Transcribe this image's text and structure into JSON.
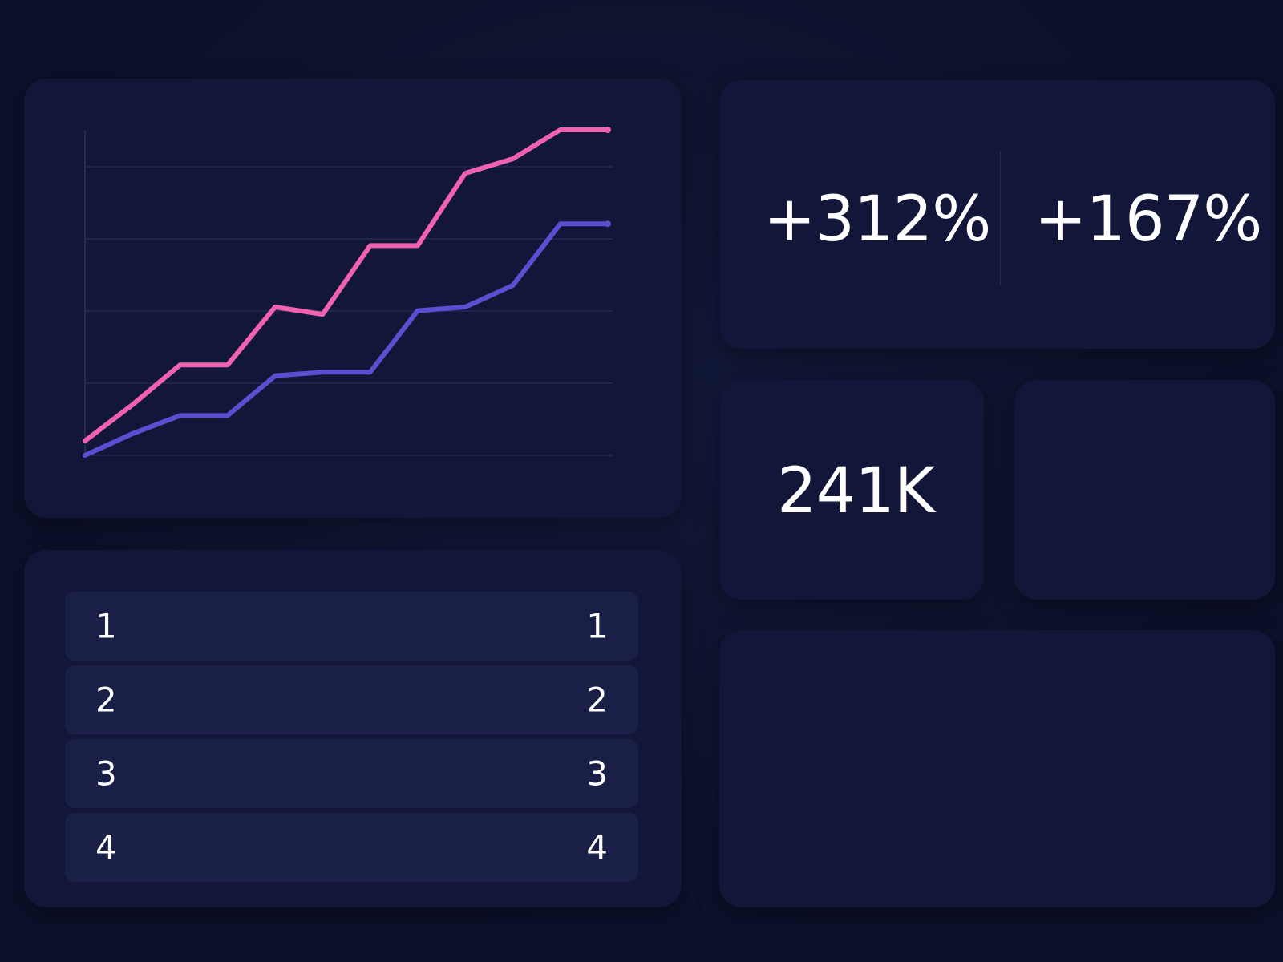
{
  "colors": {
    "background": "#0c1029",
    "card": "#12173a",
    "row": "#1a1f47",
    "grid": "#2a3160",
    "series_pink": "#f062b0",
    "series_indigo": "#5a4fd0"
  },
  "stats": {
    "primary": "+312%",
    "secondary": "+167%"
  },
  "kpi": {
    "value": "241K"
  },
  "list": {
    "rows": [
      {
        "left": "1",
        "right": "1"
      },
      {
        "left": "2",
        "right": "2"
      },
      {
        "left": "3",
        "right": "3"
      },
      {
        "left": "4",
        "right": "4"
      }
    ]
  },
  "chart_data": {
    "type": "line",
    "title": "",
    "xlabel": "",
    "ylabel": "",
    "grid": true,
    "x": [
      0,
      1,
      2,
      3,
      4,
      5,
      6,
      7,
      8,
      9,
      10,
      11
    ],
    "xlim": [
      0,
      11
    ],
    "ylim": [
      0,
      4.5
    ],
    "series": [
      {
        "color": "#f062b0",
        "values": [
          0.2,
          0.7,
          1.25,
          1.25,
          2.05,
          1.95,
          2.9,
          2.9,
          3.9,
          4.1,
          4.5,
          4.5
        ]
      },
      {
        "color": "#5a4fd0",
        "values": [
          0.0,
          0.3,
          0.55,
          0.55,
          1.1,
          1.15,
          1.15,
          2.0,
          2.05,
          2.35,
          3.2,
          3.2
        ]
      }
    ]
  }
}
